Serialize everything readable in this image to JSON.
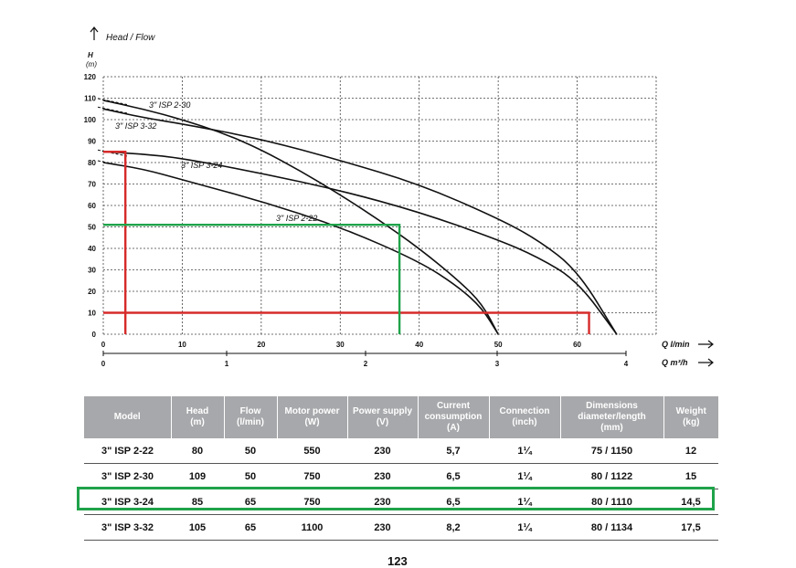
{
  "chart_data": {
    "type": "line",
    "title": "Head / Flow",
    "ylabel": "H",
    "yunit": "(m)",
    "xlabel": "Q l/min",
    "x2label": "Q m³/h",
    "xlim": [
      0,
      70
    ],
    "ylim": [
      0,
      120
    ],
    "yticks": [
      "0",
      "10",
      "20",
      "30",
      "40",
      "50",
      "60",
      "70",
      "80",
      "90",
      "100",
      "110",
      "120"
    ],
    "xticks": [
      "0",
      "10",
      "20",
      "30",
      "40",
      "50",
      "60"
    ],
    "x2ticks": [
      "0",
      "1",
      "2",
      "3",
      "4"
    ],
    "grid": true,
    "series": [
      {
        "name": "3\" ISP 2-30",
        "x": [
          0,
          5,
          10,
          15,
          20,
          25,
          30,
          35,
          40,
          45,
          48,
          50
        ],
        "y": [
          109,
          105,
          100,
          94,
          86,
          76,
          65,
          53,
          40,
          25,
          14,
          0
        ],
        "dashed_until": 3
      },
      {
        "name": "3\" ISP 3-32",
        "x": [
          0,
          5,
          10,
          20,
          30,
          40,
          50,
          55,
          60,
          65
        ],
        "y": [
          105,
          101,
          98,
          91,
          81,
          70,
          54,
          44,
          30,
          0
        ],
        "dashed_until": 3
      },
      {
        "name": "3\" ISP 3-24",
        "x": [
          0,
          5,
          10,
          20,
          30,
          40,
          50,
          55,
          60,
          65
        ],
        "y": [
          85,
          84,
          82,
          75,
          67,
          57,
          44,
          36,
          25,
          0
        ],
        "dashed_until": 3
      },
      {
        "name": "3\" ISP 2-22",
        "x": [
          0,
          5,
          10,
          20,
          30,
          40,
          45,
          48,
          50
        ],
        "y": [
          80,
          77,
          72,
          62,
          50,
          34,
          22,
          12,
          0
        ],
        "dashed_until": 3
      }
    ],
    "annotations": [
      {
        "color": "#d62a2a",
        "type": "duty-point",
        "head_top": 85,
        "head_low": 10,
        "flow_left": 2.8,
        "flow_right": 61.5
      },
      {
        "color": "#1fa34a",
        "type": "duty-point",
        "head": 51,
        "flow": 37.5
      }
    ]
  },
  "table": {
    "headers": [
      [
        "Model"
      ],
      [
        "Head",
        "(m)"
      ],
      [
        "Flow",
        "(l/min)"
      ],
      [
        "Motor power",
        "(W)"
      ],
      [
        "Power supply",
        "(V)"
      ],
      [
        "Current",
        "consumption",
        "(A)"
      ],
      [
        "Connection",
        "(inch)"
      ],
      [
        "Dimensions",
        "diameter/length",
        "(mm)"
      ],
      [
        "Weight",
        "(kg)"
      ]
    ],
    "rows": [
      [
        "3\" ISP 2-22",
        "80",
        "50",
        "550",
        "230",
        "5,7",
        "1¼",
        "75 / 1150",
        "12"
      ],
      [
        "3\" ISP 2-30",
        "109",
        "50",
        "750",
        "230",
        "6,5",
        "1¼",
        "80 / 1122",
        "15"
      ],
      [
        "3\" ISP 3-24",
        "85",
        "65",
        "750",
        "230",
        "6,5",
        "1¼",
        "80 / 1110",
        "14,5"
      ],
      [
        "3\" ISP 3-32",
        "105",
        "65",
        "1100",
        "230",
        "8,2",
        "1¼",
        "80 / 1134",
        "17,5"
      ]
    ],
    "highlight_row": 2,
    "highlight_color": "#1fa34a"
  },
  "page_number": "123"
}
